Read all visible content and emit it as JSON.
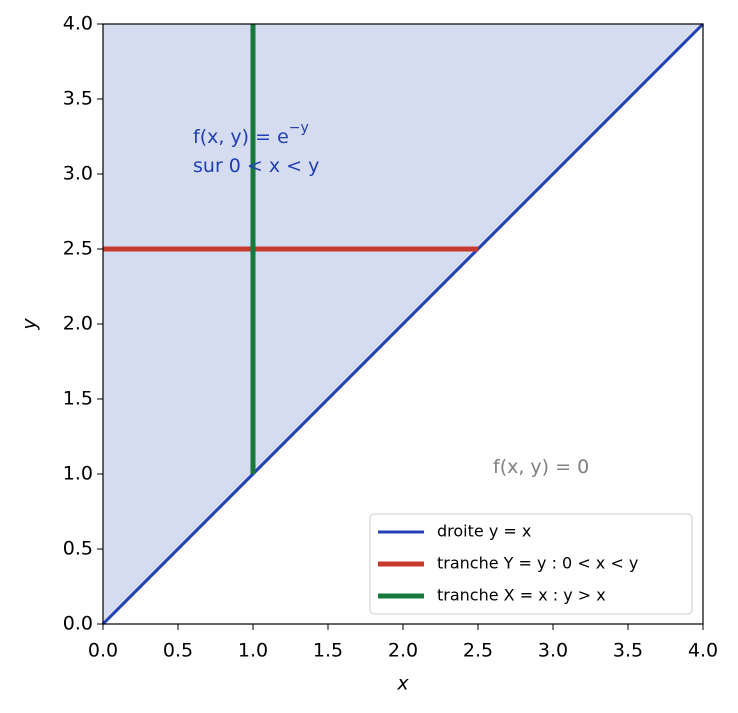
{
  "chart_data": {
    "type": "line",
    "xlabel": "x",
    "ylabel": "y",
    "series": [
      {
        "name": "droite y = x",
        "color": "#1f3fb3",
        "x": [
          0,
          4
        ],
        "values": [
          0,
          4
        ]
      },
      {
        "name": "tranche Y = y : 0 < x < y",
        "color": "#c8392e",
        "x": [
          0,
          2.5
        ],
        "values": [
          2.5,
          2.5
        ]
      },
      {
        "name": "tranche X = x : y > x",
        "color": "#157a3c",
        "x": [
          1,
          1
        ],
        "values": [
          1,
          4
        ]
      }
    ],
    "fill_color": "#d5dcef",
    "annotations": [
      {
        "text": "f(x, y) = e",
        "sup": "−y",
        "color": "#1f3fb3"
      },
      {
        "text": "sur 0 < x < y",
        "color": "#1f3fb3"
      },
      {
        "text": "f(x, y) = 0",
        "color": "#808080"
      }
    ],
    "xlim": [
      0,
      4
    ],
    "ylim": [
      0,
      4
    ],
    "xticks": [
      {
        "value": 0,
        "label": "0.0"
      },
      0.5,
      {
        "value": 1,
        "label": "1.0"
      },
      1.5,
      {
        "value": 2,
        "label": "2.0"
      },
      2.5,
      {
        "value": 3,
        "label": "3.0"
      },
      3.5,
      {
        "value": 4,
        "label": "4.0"
      }
    ],
    "yticks": [
      {
        "value": 0,
        "label": "0.0"
      },
      0.5,
      {
        "value": 1,
        "label": "1.0"
      },
      1.5,
      {
        "value": 2,
        "label": "2.0"
      },
      2.5,
      {
        "value": 3,
        "label": "3.0"
      },
      3.5,
      {
        "value": 4,
        "label": "4.0"
      }
    ],
    "grid": false,
    "legend": "lower right"
  }
}
